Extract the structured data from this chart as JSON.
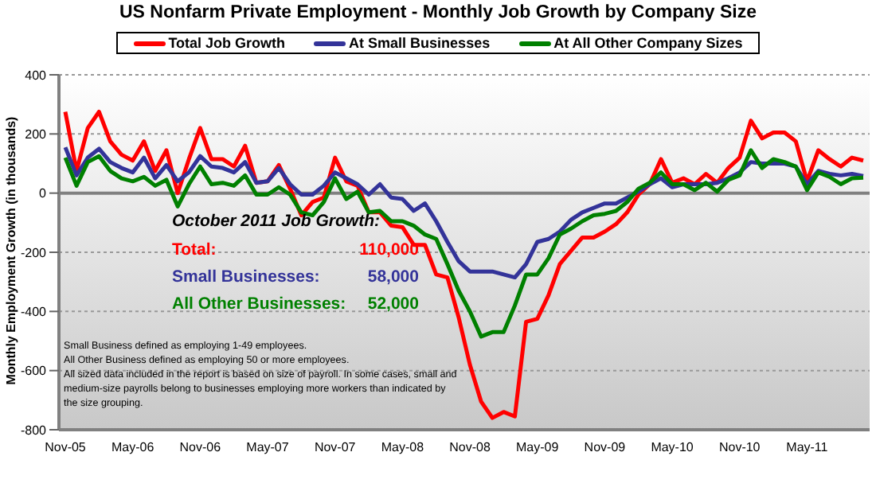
{
  "chart_data": {
    "type": "line",
    "title": "US Nonfarm Private Employment - Monthly Job Growth by Company Size",
    "ylabel": "Monthly Employment Growth (in thousands)",
    "categories": [
      "Nov-05",
      null,
      null,
      null,
      null,
      null,
      "May-06",
      null,
      null,
      null,
      null,
      null,
      "Nov-06",
      null,
      null,
      null,
      null,
      null,
      "May-07",
      null,
      null,
      null,
      null,
      null,
      "Nov-07",
      null,
      null,
      null,
      null,
      null,
      "May-08",
      null,
      null,
      null,
      null,
      null,
      "Nov-08",
      null,
      null,
      null,
      null,
      null,
      "May-09",
      null,
      null,
      null,
      null,
      null,
      "Nov-09",
      null,
      null,
      null,
      null,
      null,
      "May-10",
      null,
      null,
      null,
      null,
      null,
      "Nov-10",
      null,
      null,
      null,
      null,
      null,
      "May-11",
      null,
      null,
      null,
      null,
      null
    ],
    "series": [
      {
        "name": "Total Job Growth",
        "color": "#ff0000",
        "values": [
          275,
          75,
          220,
          275,
          175,
          130,
          110,
          175,
          75,
          145,
          0,
          115,
          220,
          115,
          115,
          90,
          160,
          35,
          40,
          95,
          15,
          -75,
          -30,
          -15,
          120,
          40,
          25,
          -65,
          -65,
          -110,
          -115,
          -175,
          -175,
          -275,
          -285,
          -420,
          -580,
          -705,
          -760,
          -740,
          -755,
          -435,
          -425,
          -345,
          -240,
          -195,
          -150,
          -150,
          -130,
          -105,
          -65,
          -5,
          30,
          115,
          35,
          50,
          30,
          65,
          35,
          85,
          120,
          245,
          185,
          205,
          205,
          175,
          40,
          145,
          115,
          90,
          120,
          110
        ]
      },
      {
        "name": "At Small Businesses",
        "color": "#333399",
        "values": [
          155,
          60,
          120,
          150,
          105,
          85,
          70,
          120,
          50,
          95,
          40,
          70,
          125,
          90,
          85,
          70,
          105,
          35,
          40,
          85,
          30,
          -5,
          -5,
          25,
          70,
          50,
          30,
          -5,
          30,
          -15,
          -20,
          -60,
          -35,
          -95,
          -165,
          -230,
          -265,
          -265,
          -265,
          -275,
          -285,
          -240,
          -165,
          -155,
          -130,
          -90,
          -65,
          -50,
          -35,
          -35,
          -15,
          5,
          30,
          50,
          20,
          30,
          30,
          30,
          35,
          50,
          70,
          105,
          100,
          100,
          100,
          90,
          30,
          75,
          65,
          60,
          65,
          58
        ]
      },
      {
        "name": "At All Other Company Sizes",
        "color": "#008000",
        "values": [
          120,
          25,
          105,
          125,
          75,
          50,
          40,
          55,
          25,
          45,
          -45,
          30,
          90,
          30,
          35,
          25,
          60,
          -5,
          -5,
          20,
          -5,
          -65,
          -75,
          -30,
          50,
          -20,
          5,
          -65,
          -60,
          -95,
          -95,
          -110,
          -140,
          -155,
          -240,
          -330,
          -400,
          -485,
          -470,
          -470,
          -380,
          -275,
          -275,
          -220,
          -140,
          -120,
          -95,
          -75,
          -70,
          -60,
          -30,
          15,
          35,
          70,
          30,
          30,
          10,
          35,
          5,
          45,
          60,
          145,
          85,
          115,
          105,
          90,
          10,
          70,
          55,
          30,
          50,
          52
        ]
      }
    ],
    "ylim": [
      -800,
      400
    ],
    "yticks": [
      -800,
      -600,
      -400,
      -200,
      0,
      200,
      400
    ],
    "grid": "y",
    "legend": "top",
    "ref_lines": [
      {
        "axis": "y",
        "value": 0,
        "color": "#808080"
      }
    ],
    "annotations": [
      "October 2011 Job Growth:",
      "Total:",
      "110,000",
      "Small Businesses:",
      "58,000",
      "All Other Businesses:",
      "52,000",
      "Small Business defined as employing 1-49 employees.",
      "All Other Business defined as employing 50 or more employees.",
      "All sized data included in the report is based on size of payroll.  In some cases, small and medium-size payrolls belong to businesses employing more workers than indicated by the size grouping."
    ]
  }
}
